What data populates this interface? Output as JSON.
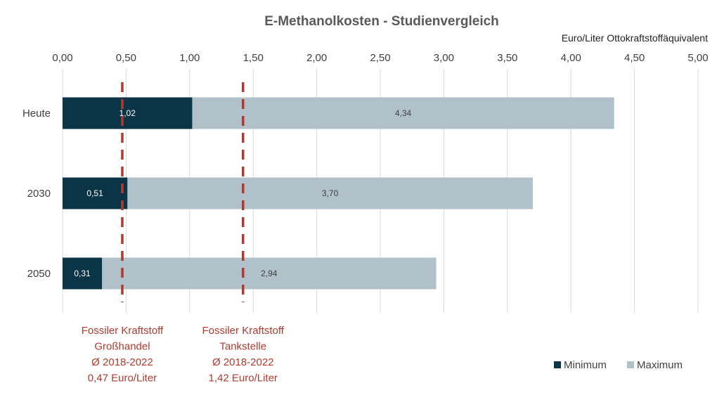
{
  "chart_data": {
    "type": "bar",
    "orientation": "horizontal",
    "stacked": "overlay",
    "title": "E-Methanolkosten - Studienvergleich",
    "unit_label": "Euro/Liter Ottokraftstoffäquivalent",
    "categories": [
      "Heute",
      "2030",
      "2050"
    ],
    "series": [
      {
        "name": "Minimum",
        "values": [
          1.02,
          0.51,
          0.31
        ],
        "labels": [
          "1,02",
          "0,51",
          "0,31"
        ],
        "color": "#0b3447",
        "label_color": "#ffffff"
      },
      {
        "name": "Maximum",
        "values": [
          4.34,
          3.7,
          2.94
        ],
        "labels": [
          "4,34",
          "3,70",
          "2,94"
        ],
        "color": "#b1c1ca",
        "label_color": "#404040"
      }
    ],
    "x_ticks": [
      "0,00",
      "0,50",
      "1,00",
      "1,50",
      "2,00",
      "2,50",
      "3,00",
      "3,50",
      "4,00",
      "4,50",
      "5,00"
    ],
    "xlim": [
      0,
      5
    ],
    "x_axis_position": "top",
    "grid": true,
    "gridline_color": "#d9d9d9",
    "legend_position": "bottom-right",
    "reference_lines": [
      {
        "value": 0.47,
        "color": "#b03a2e",
        "style": "dashed",
        "annotation": [
          "Fossiler Kraftstoff",
          "Großhandel",
          "Ø 2018-2022",
          "0,47 Euro/Liter"
        ]
      },
      {
        "value": 1.42,
        "color": "#b03a2e",
        "style": "dashed",
        "annotation": [
          "Fossiler Kraftstoff",
          "Tankstelle",
          "Ø 2018-2022",
          "1,42 Euro/Liter"
        ]
      }
    ]
  }
}
